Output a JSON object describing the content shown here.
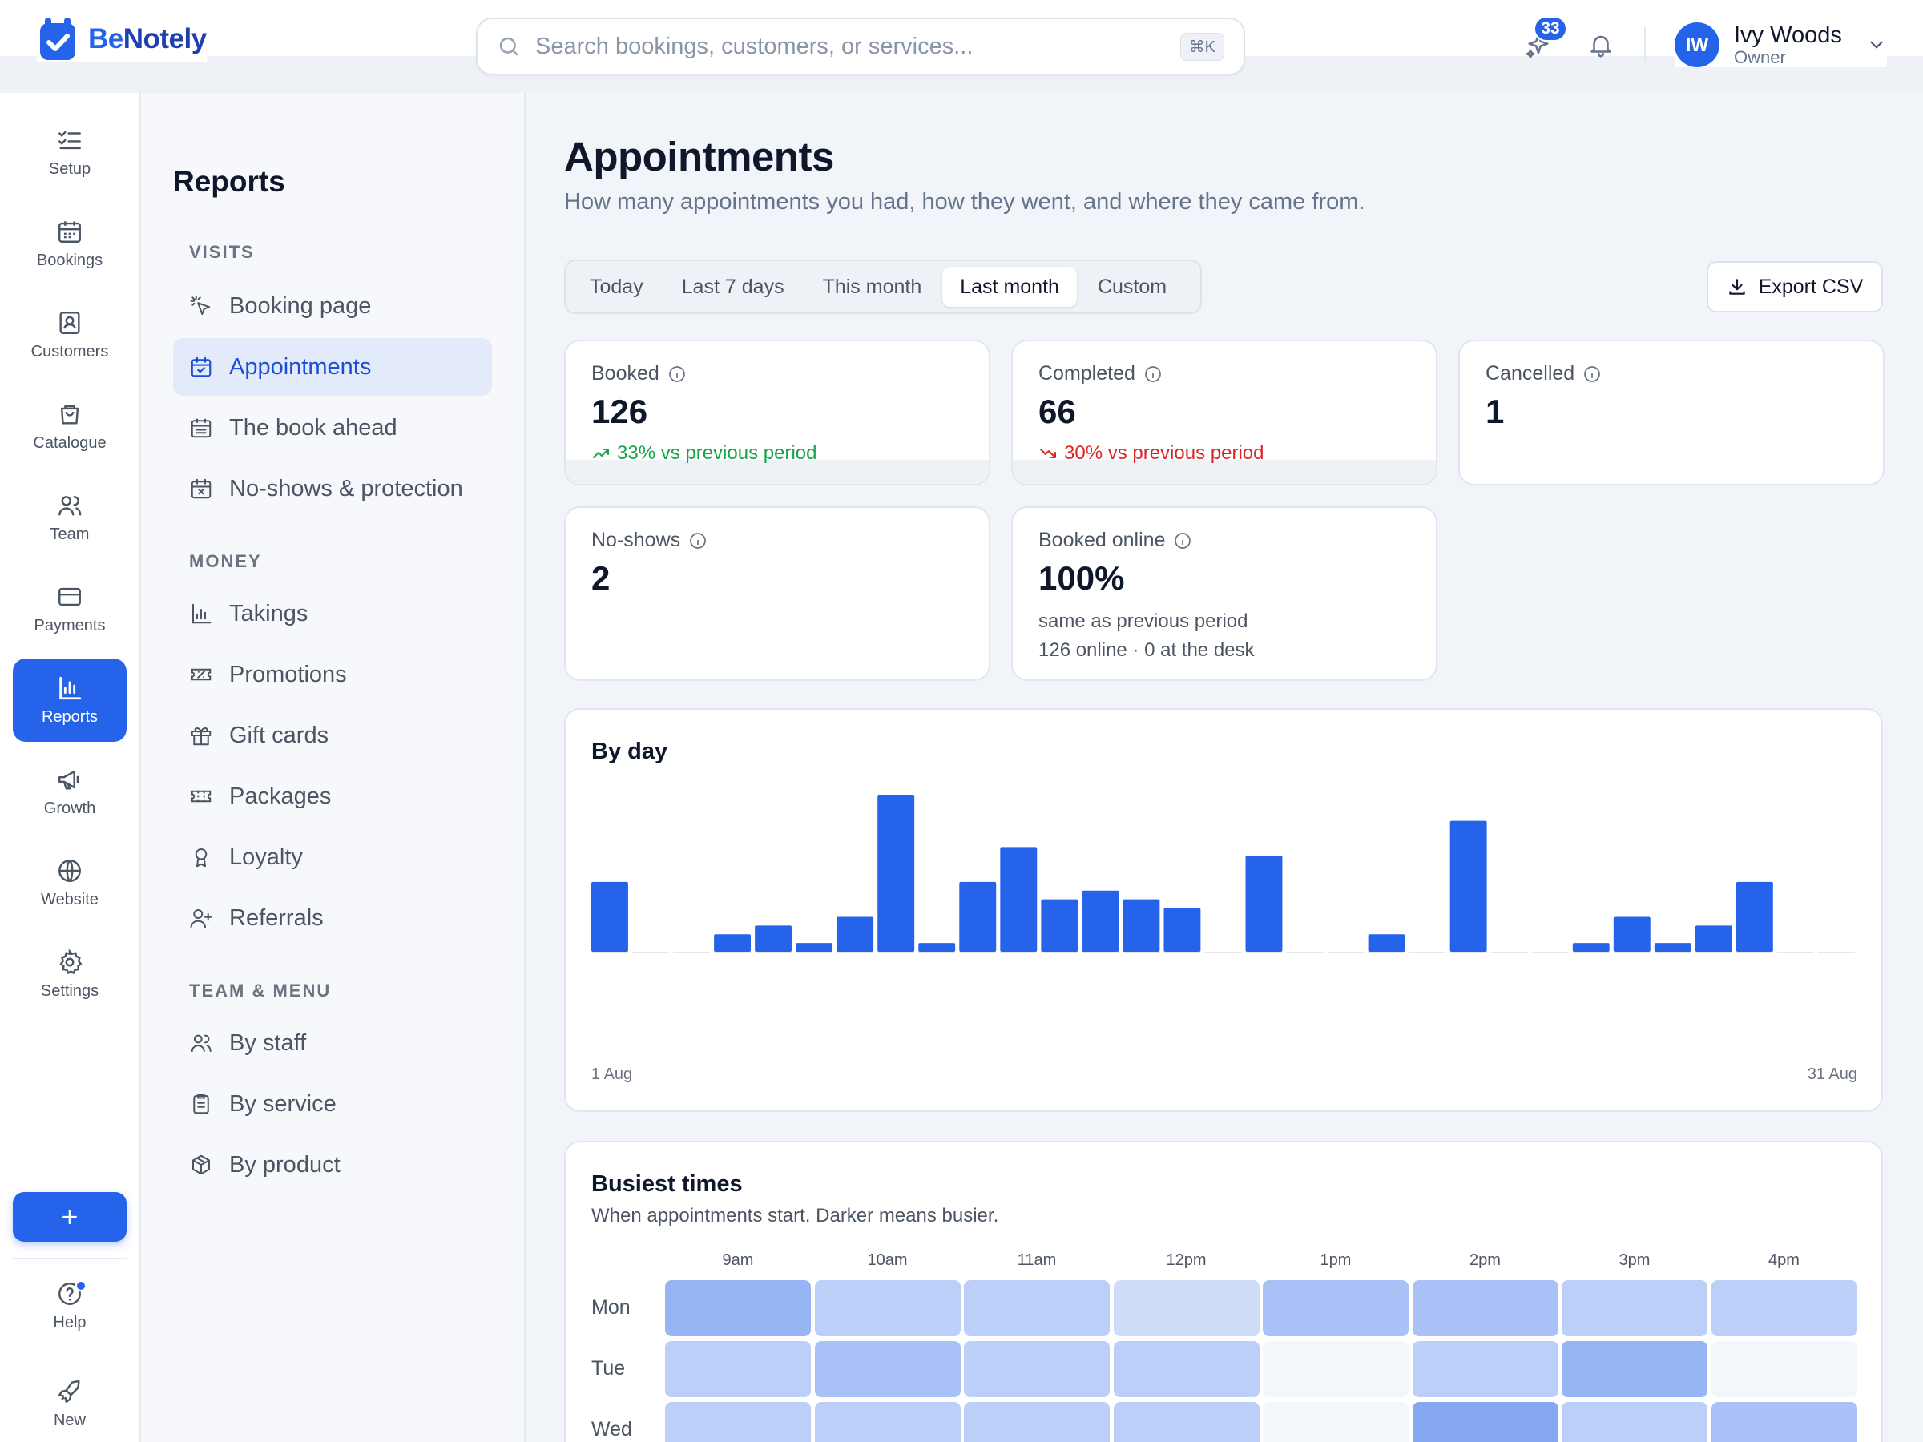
{
  "brand": {
    "name_prefix": "Be",
    "name_suffix": "Notely"
  },
  "search": {
    "placeholder": "Search bookings, customers, or services...",
    "shortcut": "⌘K"
  },
  "topbar": {
    "whats_new_count": "33",
    "user": {
      "name": "Ivy Woods",
      "role": "Owner",
      "initials": "IW"
    }
  },
  "rail": {
    "items": [
      {
        "label": "Setup",
        "icon": "checklist-icon"
      },
      {
        "label": "Bookings",
        "icon": "calendar-icon"
      },
      {
        "label": "Customers",
        "icon": "contact-icon"
      },
      {
        "label": "Catalogue",
        "icon": "bag-icon"
      },
      {
        "label": "Team",
        "icon": "team-icon"
      },
      {
        "label": "Payments",
        "icon": "card-icon"
      },
      {
        "label": "Reports",
        "icon": "bar-chart-icon",
        "active": true
      },
      {
        "label": "Growth",
        "icon": "megaphone-icon"
      },
      {
        "label": "Website",
        "icon": "globe-icon"
      },
      {
        "label": "Settings",
        "icon": "gear-icon"
      }
    ],
    "add_label": "+",
    "help_label": "Help",
    "new_label": "New"
  },
  "sidebar": {
    "title": "Reports",
    "sections": {
      "visits": "VISITS",
      "money": "MONEY",
      "team_menu": "TEAM & MENU"
    },
    "visits_items": [
      {
        "label": "Booking page",
        "icon": "cursor-click-icon"
      },
      {
        "label": "Appointments",
        "icon": "calendar-check-icon",
        "active": true
      },
      {
        "label": "The book ahead",
        "icon": "calendar-grid-icon"
      },
      {
        "label": "No-shows & protection",
        "icon": "calendar-x-icon"
      }
    ],
    "money_items": [
      {
        "label": "Takings",
        "icon": "bar-chart-icon"
      },
      {
        "label": "Promotions",
        "icon": "ticket-percent-icon"
      },
      {
        "label": "Gift cards",
        "icon": "gift-icon"
      },
      {
        "label": "Packages",
        "icon": "ticket-icon"
      },
      {
        "label": "Loyalty",
        "icon": "award-icon"
      },
      {
        "label": "Referrals",
        "icon": "user-plus-icon"
      }
    ],
    "team_items": [
      {
        "label": "By staff",
        "icon": "users-icon"
      },
      {
        "label": "By service",
        "icon": "clipboard-icon"
      },
      {
        "label": "By product",
        "icon": "box-icon"
      }
    ]
  },
  "page": {
    "title": "Appointments",
    "subtitle": "How many appointments you had, how they went, and where they came from.",
    "ranges": [
      "Today",
      "Last 7 days",
      "This month",
      "Last month",
      "Custom"
    ],
    "active_range": "Last month",
    "export_label": "Export CSV"
  },
  "stats": {
    "booked": {
      "label": "Booked",
      "value": "126",
      "delta": "33% vs previous period",
      "trend": "up"
    },
    "completed": {
      "label": "Completed",
      "value": "66",
      "delta": "30% vs previous period",
      "trend": "down"
    },
    "cancelled": {
      "label": "Cancelled",
      "value": "1"
    },
    "no_shows": {
      "label": "No-shows",
      "value": "2"
    },
    "booked_online": {
      "label": "Booked online",
      "value": "100%",
      "note1": "same as previous period",
      "note2": "126 online · 0 at the desk"
    }
  },
  "colors": {
    "accent": "#2563eb",
    "up": "#16a34a",
    "down": "#dc2626"
  },
  "chart_data": {
    "type": "bar",
    "title": "By day",
    "x_first_label": "1 Aug",
    "x_last_label": "31 Aug",
    "categories": [
      "1",
      "2",
      "3",
      "4",
      "5",
      "6",
      "7",
      "8",
      "9",
      "10",
      "11",
      "12",
      "13",
      "14",
      "15",
      "16",
      "17",
      "18",
      "19",
      "20",
      "21",
      "22",
      "23",
      "24",
      "25",
      "26",
      "27",
      "28",
      "29",
      "30",
      "31"
    ],
    "values": [
      8,
      0,
      0,
      2,
      3,
      1,
      4,
      18,
      1,
      8,
      12,
      6,
      7,
      6,
      5,
      0,
      11,
      0,
      0,
      2,
      0,
      15,
      0,
      0,
      1,
      4,
      1,
      3,
      8,
      0,
      0
    ]
  },
  "heatmap": {
    "title": "Busiest times",
    "subtitle": "When appointments start. Darker means busier.",
    "hours": [
      "9am",
      "10am",
      "11am",
      "12pm",
      "1pm",
      "2pm",
      "3pm",
      "4pm"
    ],
    "days": [
      "Mon",
      "Tue",
      "Wed"
    ],
    "levels": [
      [
        4,
        2,
        2,
        1,
        3,
        3,
        2,
        2
      ],
      [
        2,
        3,
        2,
        2,
        0,
        2,
        4,
        0
      ],
      [
        2,
        2,
        2,
        2,
        0,
        5,
        2,
        3
      ]
    ]
  }
}
